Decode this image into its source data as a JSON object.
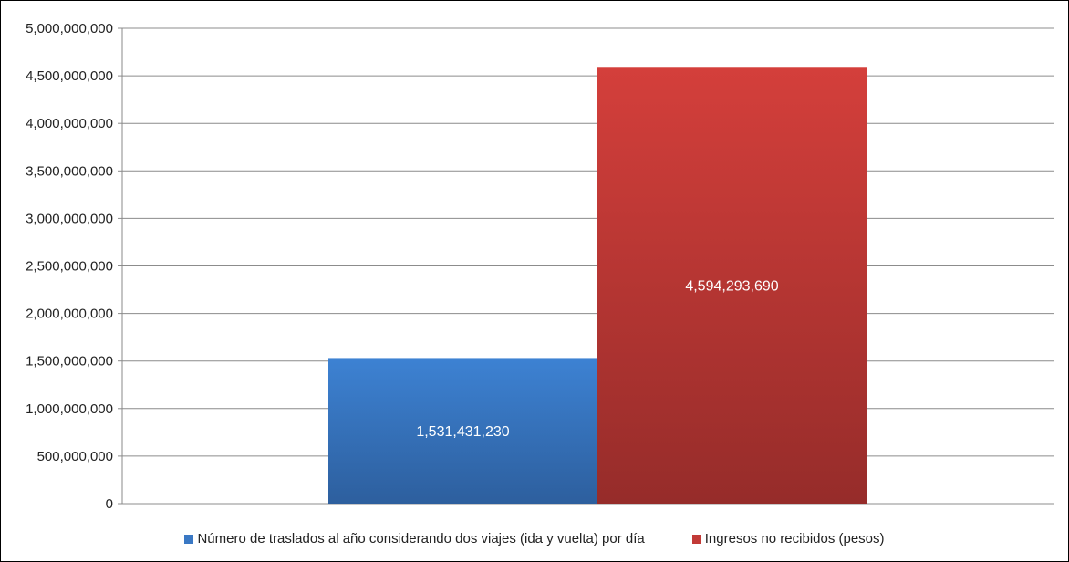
{
  "chart_data": {
    "type": "bar",
    "title": "",
    "xlabel": "",
    "ylabel": "",
    "ylim": [
      0,
      5000000000
    ],
    "yticks": [
      0,
      500000000,
      1000000000,
      1500000000,
      2000000000,
      2500000000,
      3000000000,
      3500000000,
      4000000000,
      4500000000,
      5000000000
    ],
    "ytick_labels": [
      "0",
      "500,000,000",
      "1,000,000,000",
      "1,500,000,000",
      "2,000,000,000",
      "2,500,000,000",
      "3,000,000,000",
      "3,500,000,000",
      "4,000,000,000",
      "4,500,000,000",
      "5,000,000,000"
    ],
    "grid": true,
    "legend_position": "bottom",
    "series": [
      {
        "name": "Número de traslados al año considerando dos viajes (ida y vuelta) por día",
        "values": [
          1531431230
        ],
        "label": "1,531,431,230",
        "color": "#3A78C4"
      },
      {
        "name": "Ingresos no recibidos (pesos)",
        "values": [
          4594293690
        ],
        "label": "4,594,293,690",
        "color": "#C23A37"
      }
    ]
  }
}
